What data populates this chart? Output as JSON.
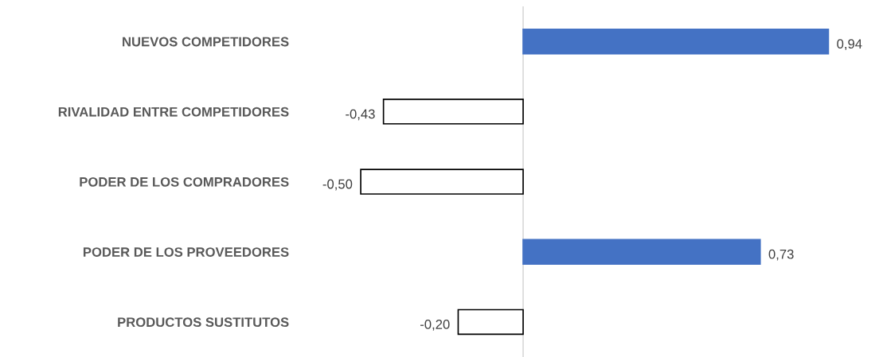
{
  "chart_data": {
    "type": "bar",
    "orientation": "horizontal",
    "categories": [
      "NUEVOS COMPETIDORES",
      "RIVALIDAD ENTRE COMPETIDORES",
      "PODER DE LOS COMPRADORES",
      "PODER DE LOS PROVEEDORES",
      "PRODUCTOS SUSTITUTOS"
    ],
    "values": [
      0.94,
      -0.43,
      -0.5,
      0.73,
      -0.2
    ],
    "value_labels": [
      "0,94",
      "-0,43",
      "-0,50",
      "0,73",
      "-0,20"
    ],
    "colors": [
      "#4472c4",
      "#ffffff",
      "#ffffff",
      "#4472c4",
      "#ffffff"
    ],
    "grid": false,
    "legend": false
  }
}
